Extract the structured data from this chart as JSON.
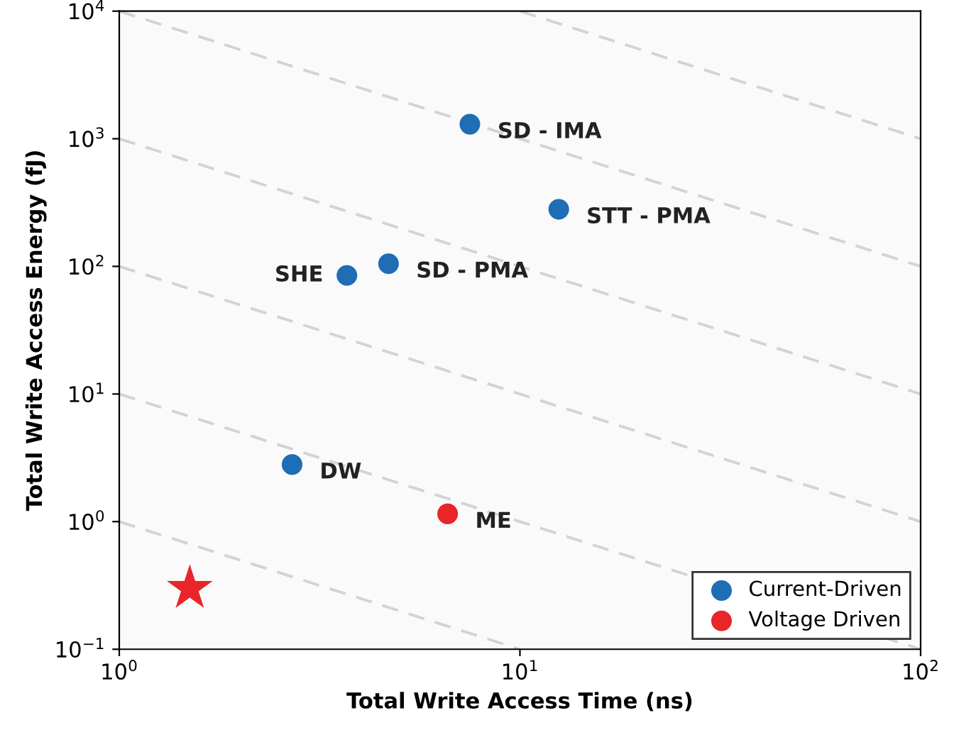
{
  "chart_data": {
    "type": "scatter",
    "xlabel": "Total Write Access Time (ns)",
    "ylabel": "Total Write Access Energy (fJ)",
    "log": "xy",
    "xlim": [
      1,
      100
    ],
    "ylim": [
      0.1,
      10000
    ],
    "xticks": [
      {
        "value": 1,
        "label": "10$^{0}$"
      },
      {
        "value": 10,
        "label": "10$^{1}$"
      },
      {
        "value": 100,
        "label": "10$^{2}$"
      }
    ],
    "yticks": [
      {
        "value": 0.1,
        "label": "10$^{−1}$"
      },
      {
        "value": 1,
        "label": "10$^{0}$"
      },
      {
        "value": 10,
        "label": "10$^{1}$"
      },
      {
        "value": 100,
        "label": "10$^{2}$"
      },
      {
        "value": 1000,
        "label": "10$^{3}$"
      },
      {
        "value": 10000,
        "label": "10$^{4}$"
      }
    ],
    "grid": false,
    "legend": "bottom right",
    "marker": "circle",
    "series": [
      {
        "type": "line",
        "marker": "none",
        "color": "#d3d3d3",
        "line_style": "dashed",
        "x": [
          10,
          100
        ],
        "values": [
          10000,
          1000
        ]
      },
      {
        "type": "line",
        "marker": "none",
        "color": "#d3d3d3",
        "line_style": "dashed",
        "x": [
          1,
          100
        ],
        "values": [
          10000,
          100
        ]
      },
      {
        "type": "line",
        "marker": "none",
        "color": "#d3d3d3",
        "line_style": "dashed",
        "x": [
          1,
          100
        ],
        "values": [
          1000,
          10
        ]
      },
      {
        "type": "line",
        "marker": "none",
        "color": "#d3d3d3",
        "line_style": "dashed",
        "x": [
          1,
          100
        ],
        "values": [
          100,
          1
        ]
      },
      {
        "type": "line",
        "marker": "none",
        "color": "#d3d3d3",
        "line_style": "dashed",
        "x": [
          1,
          100
        ],
        "values": [
          10,
          0.1
        ]
      },
      {
        "type": "line",
        "marker": "none",
        "color": "#d3d3d3",
        "line_style": "dashed",
        "x": [
          1,
          10
        ],
        "values": [
          1,
          0.1
        ]
      },
      {
        "name": "Current-Driven",
        "color": "#1f6db5",
        "x": [
          7.5,
          12.5,
          4.7,
          3.7,
          2.7
        ],
        "values": [
          1300,
          280,
          105,
          85,
          2.8
        ]
      },
      {
        "name": "Voltage Driven",
        "color": "#e8262a",
        "x": [
          6.6
        ],
        "values": [
          1.15
        ]
      },
      {
        "color": "#e8262a",
        "marker": "star",
        "x": [
          1.5
        ],
        "values": [
          0.3
        ]
      }
    ],
    "annotations": [
      {
        "text": "SD - IMA",
        "x": 7.5,
        "y": 1300
      },
      {
        "text": "STT - PMA",
        "x": 12.5,
        "y": 280
      },
      {
        "text": "SD - PMA",
        "x": 4.7,
        "y": 105
      },
      {
        "text": "SHE",
        "x": 3.7,
        "y": 85
      },
      {
        "text": "DW",
        "x": 2.7,
        "y": 2.8
      },
      {
        "text": "ME",
        "x": 6.6,
        "y": 1.15
      }
    ]
  }
}
